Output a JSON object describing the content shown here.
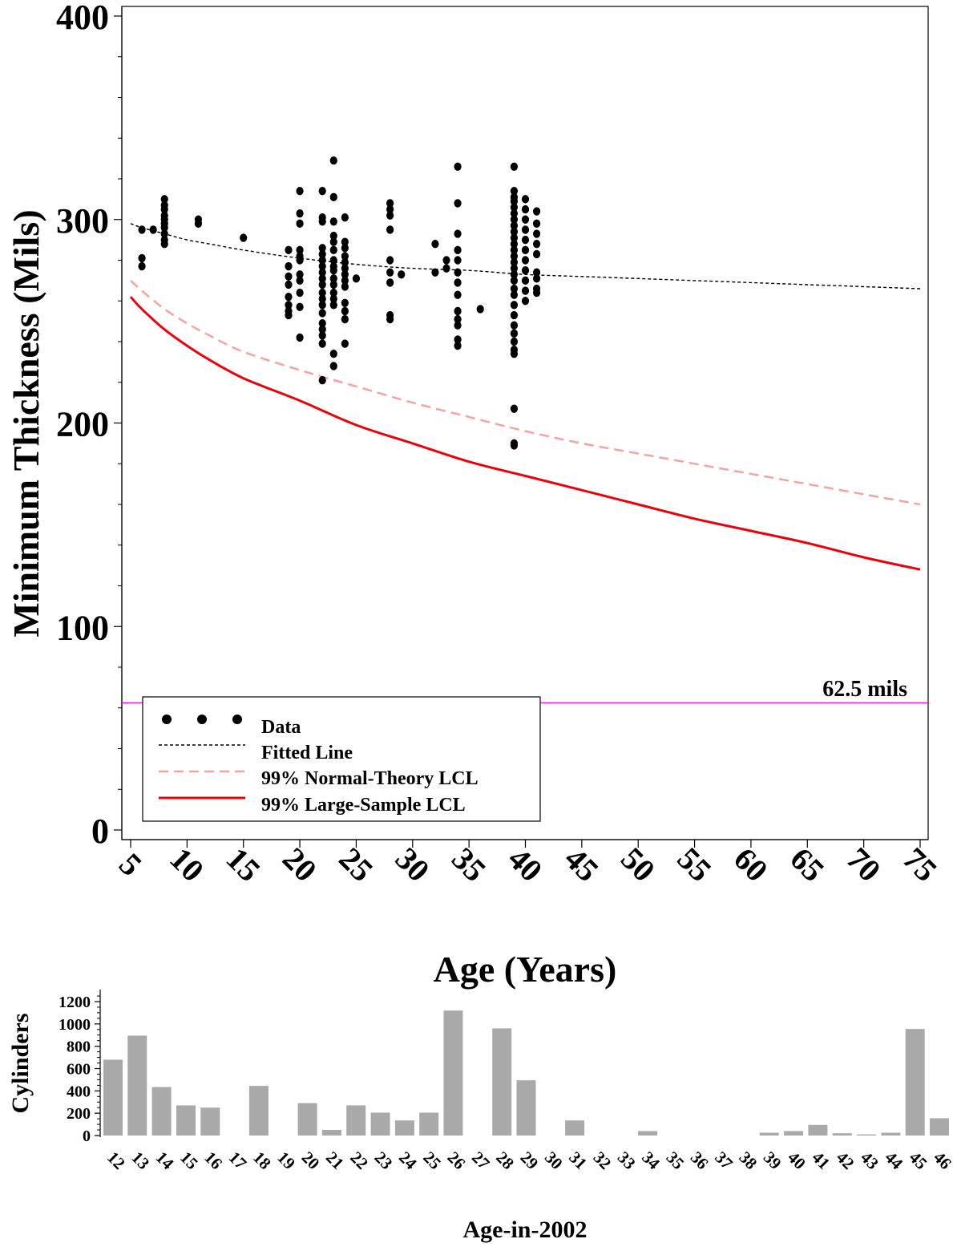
{
  "chart_data": [
    {
      "type": "scatter",
      "xlabel": "Age (Years)",
      "ylabel": "Minimum Thickness (Mils)",
      "xlim": [
        5,
        75
      ],
      "ylim": [
        0,
        400
      ],
      "x_ticks": [
        "5",
        "10",
        "15",
        "20",
        "25",
        "30",
        "35",
        "40",
        "45",
        "50",
        "55",
        "60",
        "65",
        "70",
        "75"
      ],
      "y_ticks": [
        "0",
        "100",
        "200",
        "300",
        "400"
      ],
      "grid": false,
      "legend": {
        "placement": "bottom-left",
        "entries": [
          "Data",
          "Fitted Line",
          "99% Normal-Theory LCL",
          "99% Large-Sample LCL"
        ]
      },
      "reference_line": {
        "value": 62.5,
        "label": "62.5 mils",
        "color": "#ff00ff"
      },
      "colors": {
        "data": "#000000",
        "fitted": "#000000",
        "normal_lcl": "#f4a3a3",
        "large_lcl": "#e8000b"
      },
      "series": [
        {
          "name": "Data",
          "style": "points",
          "points": [
            [
              6,
              295
            ],
            [
              6,
              281
            ],
            [
              6,
              277
            ],
            [
              7,
              295
            ],
            [
              8,
              310
            ],
            [
              8,
              307
            ],
            [
              8,
              305
            ],
            [
              8,
              302
            ],
            [
              8,
              300
            ],
            [
              8,
              298
            ],
            [
              8,
              296
            ],
            [
              8,
              293
            ],
            [
              8,
              290
            ],
            [
              8,
              288
            ],
            [
              11,
              300
            ],
            [
              11,
              298
            ],
            [
              15,
              291
            ],
            [
              19,
              285
            ],
            [
              19,
              277
            ],
            [
              19,
              272
            ],
            [
              19,
              268
            ],
            [
              19,
              262
            ],
            [
              19,
              258
            ],
            [
              19,
              255
            ],
            [
              19,
              253
            ],
            [
              20,
              314
            ],
            [
              20,
              303
            ],
            [
              20,
              298
            ],
            [
              20,
              285
            ],
            [
              20,
              282
            ],
            [
              20,
              280
            ],
            [
              20,
              273
            ],
            [
              20,
              270
            ],
            [
              20,
              264
            ],
            [
              20,
              257
            ],
            [
              20,
              242
            ],
            [
              22,
              314
            ],
            [
              22,
              301
            ],
            [
              22,
              299
            ],
            [
              22,
              286
            ],
            [
              22,
              283
            ],
            [
              22,
              280
            ],
            [
              22,
              277
            ],
            [
              22,
              274
            ],
            [
              22,
              271
            ],
            [
              22,
              268
            ],
            [
              22,
              264
            ],
            [
              22,
              261
            ],
            [
              22,
              258
            ],
            [
              22,
              254
            ],
            [
              22,
              249
            ],
            [
              22,
              246
            ],
            [
              22,
              243
            ],
            [
              22,
              239
            ],
            [
              22,
              221
            ],
            [
              23,
              329
            ],
            [
              23,
              311
            ],
            [
              23,
              299
            ],
            [
              23,
              292
            ],
            [
              23,
              289
            ],
            [
              23,
              285
            ],
            [
              23,
              280
            ],
            [
              23,
              277
            ],
            [
              23,
              275
            ],
            [
              23,
              271
            ],
            [
              23,
              268
            ],
            [
              23,
              264
            ],
            [
              23,
              261
            ],
            [
              23,
              258
            ],
            [
              23,
              234
            ],
            [
              23,
              228
            ],
            [
              24,
              301
            ],
            [
              24,
              289
            ],
            [
              24,
              286
            ],
            [
              24,
              282
            ],
            [
              24,
              279
            ],
            [
              24,
              276
            ],
            [
              24,
              273
            ],
            [
              24,
              270
            ],
            [
              24,
              267
            ],
            [
              24,
              259
            ],
            [
              24,
              255
            ],
            [
              24,
              251
            ],
            [
              24,
              239
            ],
            [
              25,
              271
            ],
            [
              28,
              308
            ],
            [
              28,
              305
            ],
            [
              28,
              302
            ],
            [
              28,
              295
            ],
            [
              28,
              280
            ],
            [
              28,
              274
            ],
            [
              28,
              269
            ],
            [
              28,
              253
            ],
            [
              28,
              251
            ],
            [
              29,
              273
            ],
            [
              32,
              288
            ],
            [
              32,
              274
            ],
            [
              33,
              280
            ],
            [
              33,
              276
            ],
            [
              34,
              326
            ],
            [
              34,
              308
            ],
            [
              34,
              293
            ],
            [
              34,
              285
            ],
            [
              34,
              280
            ],
            [
              34,
              274
            ],
            [
              34,
              269
            ],
            [
              34,
              263
            ],
            [
              34,
              255
            ],
            [
              34,
              251
            ],
            [
              34,
              248
            ],
            [
              34,
              241
            ],
            [
              34,
              238
            ],
            [
              36,
              256
            ],
            [
              39,
              326
            ],
            [
              39,
              314
            ],
            [
              39,
              311
            ],
            [
              39,
              309
            ],
            [
              39,
              306
            ],
            [
              39,
              303
            ],
            [
              39,
              300
            ],
            [
              39,
              297
            ],
            [
              39,
              294
            ],
            [
              39,
              291
            ],
            [
              39,
              288
            ],
            [
              39,
              285
            ],
            [
              39,
              282
            ],
            [
              39,
              279
            ],
            [
              39,
              276
            ],
            [
              39,
              273
            ],
            [
              39,
              270
            ],
            [
              39,
              266
            ],
            [
              39,
              263
            ],
            [
              39,
              258
            ],
            [
              39,
              253
            ],
            [
              39,
              248
            ],
            [
              39,
              244
            ],
            [
              39,
              240
            ],
            [
              39,
              236
            ],
            [
              39,
              234
            ],
            [
              39,
              207
            ],
            [
              39,
              190
            ],
            [
              39,
              189
            ],
            [
              40,
              310
            ],
            [
              40,
              305
            ],
            [
              40,
              300
            ],
            [
              40,
              295
            ],
            [
              40,
              290
            ],
            [
              40,
              285
            ],
            [
              40,
              280
            ],
            [
              40,
              275
            ],
            [
              40,
              270
            ],
            [
              40,
              265
            ],
            [
              40,
              260
            ],
            [
              41,
              304
            ],
            [
              41,
              298
            ],
            [
              41,
              293
            ],
            [
              41,
              288
            ],
            [
              41,
              283
            ],
            [
              41,
              274
            ],
            [
              41,
              271
            ],
            [
              41,
              266
            ],
            [
              41,
              264
            ]
          ]
        },
        {
          "name": "Fitted Line",
          "style": "dotted",
          "x": [
            5,
            6,
            8,
            10,
            12,
            15,
            20,
            25,
            30,
            35,
            40,
            45,
            50,
            55,
            60,
            65,
            70,
            75
          ],
          "y": [
            298,
            296,
            293,
            290,
            288,
            285,
            281,
            278,
            276,
            275,
            273,
            272,
            271,
            270,
            269,
            268,
            267,
            266
          ]
        },
        {
          "name": "99% Normal-Theory LCL",
          "style": "dashed",
          "x": [
            5,
            6,
            8,
            10,
            12,
            15,
            20,
            25,
            30,
            35,
            40,
            45,
            50,
            55,
            60,
            65,
            70,
            75
          ],
          "y": [
            270,
            265,
            256,
            249,
            243,
            235,
            226,
            218,
            210,
            203,
            196,
            190,
            185,
            180,
            175,
            170,
            165,
            160
          ]
        },
        {
          "name": "99% Large-Sample LCL",
          "style": "solid",
          "x": [
            5,
            6,
            8,
            10,
            12,
            15,
            20,
            25,
            30,
            35,
            40,
            45,
            50,
            55,
            60,
            65,
            70,
            75
          ],
          "y": [
            262,
            256,
            246,
            238,
            231,
            222,
            211,
            199,
            190,
            181,
            174,
            167,
            160,
            153,
            147,
            141,
            134,
            128
          ]
        }
      ]
    },
    {
      "type": "bar",
      "xlabel": "Age-in-2002",
      "ylabel": "Cylinders",
      "ylim": [
        0,
        1300
      ],
      "y_ticks": [
        "0",
        "200",
        "400",
        "600",
        "800",
        "1000",
        "1200"
      ],
      "bar_color": "#a9a9a9",
      "categories": [
        "12",
        "13",
        "14",
        "15",
        "16",
        "17",
        "18",
        "19",
        "20",
        "21",
        "22",
        "23",
        "24",
        "25",
        "26",
        "27",
        "28",
        "29",
        "30",
        "31",
        "32",
        "33",
        "34",
        "35",
        "36",
        "37",
        "38",
        "39",
        "40",
        "41",
        "42",
        "43",
        "44",
        "45",
        "46"
      ],
      "values": [
        680,
        895,
        435,
        270,
        250,
        0,
        445,
        0,
        290,
        50,
        270,
        205,
        135,
        205,
        1120,
        0,
        960,
        495,
        0,
        135,
        0,
        0,
        40,
        0,
        0,
        0,
        0,
        25,
        40,
        95,
        20,
        10,
        25,
        955,
        155
      ]
    }
  ]
}
